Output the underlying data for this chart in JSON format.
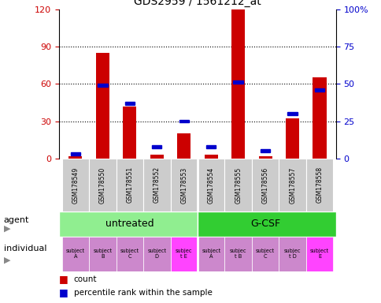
{
  "title": "GDS2959 / 1561212_at",
  "samples": [
    "GSM178549",
    "GSM178550",
    "GSM178551",
    "GSM178552",
    "GSM178553",
    "GSM178554",
    "GSM178555",
    "GSM178556",
    "GSM178557",
    "GSM178558"
  ],
  "counts": [
    2,
    85,
    42,
    3,
    20,
    3,
    120,
    2,
    32,
    65
  ],
  "percentiles": [
    3,
    49,
    37,
    8,
    25,
    8,
    51,
    5,
    30,
    46
  ],
  "ylim_left": [
    0,
    120
  ],
  "ylim_right": [
    0,
    100
  ],
  "yticks_left": [
    0,
    30,
    60,
    90,
    120
  ],
  "yticks_right": [
    0,
    25,
    50,
    75,
    100
  ],
  "ytick_labels_left": [
    "0",
    "30",
    "60",
    "90",
    "120"
  ],
  "ytick_labels_right": [
    "0",
    "25",
    "50",
    "75",
    "100%"
  ],
  "agent_colors": [
    "#90EE90",
    "#32CD32"
  ],
  "individual_color_normal": "#CC88CC",
  "individual_color_highlight": "#FF44FF",
  "individual_highlight": [
    4,
    9
  ],
  "indiv_labels": [
    "subject\nA",
    "subject\nB",
    "subject\nC",
    "subject\nD",
    "subjec\nt E",
    "subject\nA",
    "subjec\nt B",
    "subject\nC",
    "subjec\nt D",
    "subject\nE"
  ],
  "bar_color": "#CC0000",
  "percentile_color": "#0000CC",
  "tick_color_left": "#CC0000",
  "tick_color_right": "#0000CC",
  "bar_width": 0.5,
  "sample_box_color": "#CCCCCC",
  "legend_items": [
    {
      "color": "#CC0000",
      "label": "count"
    },
    {
      "color": "#0000CC",
      "label": "percentile rank within the sample"
    }
  ]
}
